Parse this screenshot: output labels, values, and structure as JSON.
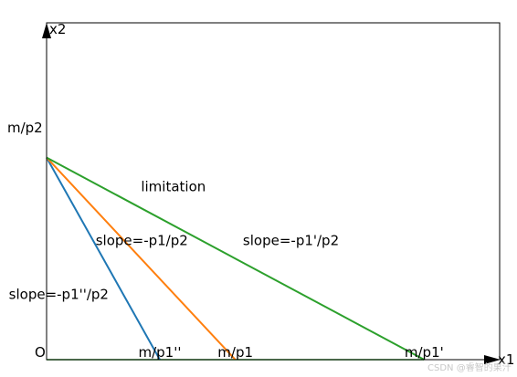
{
  "chart_data": {
    "type": "line",
    "xlabel": "x1",
    "ylabel": "x2",
    "origin_label": "O",
    "xlim": [
      0,
      6
    ],
    "ylim": [
      0,
      5
    ],
    "y_intercept": {
      "value": 3,
      "label": "m/p2"
    },
    "series": [
      {
        "label": "slope=-p1''/p2",
        "color": "#1f77b4",
        "x": [
          0,
          1.5
        ],
        "y": [
          3,
          0
        ],
        "intercept_label": "m/p1''"
      },
      {
        "label": "slope=-p1/p2",
        "color": "#ff7f0e",
        "x": [
          0,
          2.5
        ],
        "y": [
          3,
          0
        ],
        "intercept_label": "m/p1"
      },
      {
        "label": "slope=-p1'/p2",
        "color": "#2ca02c",
        "x": [
          0,
          5
        ],
        "y": [
          3,
          0
        ],
        "intercept_label": "m/p1'"
      }
    ],
    "baseline_color": "#2ca02c",
    "annotations": [
      {
        "text": "limitation",
        "x": 1.25,
        "y": 2.5
      },
      {
        "text": "slope=-p1/p2",
        "x": 0.65,
        "y": 1.7
      },
      {
        "text": "slope=-p1'/p2",
        "x": 2.6,
        "y": 1.7
      },
      {
        "text": "slope=-p1''/p2",
        "x": -0.5,
        "y": 0.9
      }
    ]
  },
  "watermark": "CSDN @睿智的果汁"
}
